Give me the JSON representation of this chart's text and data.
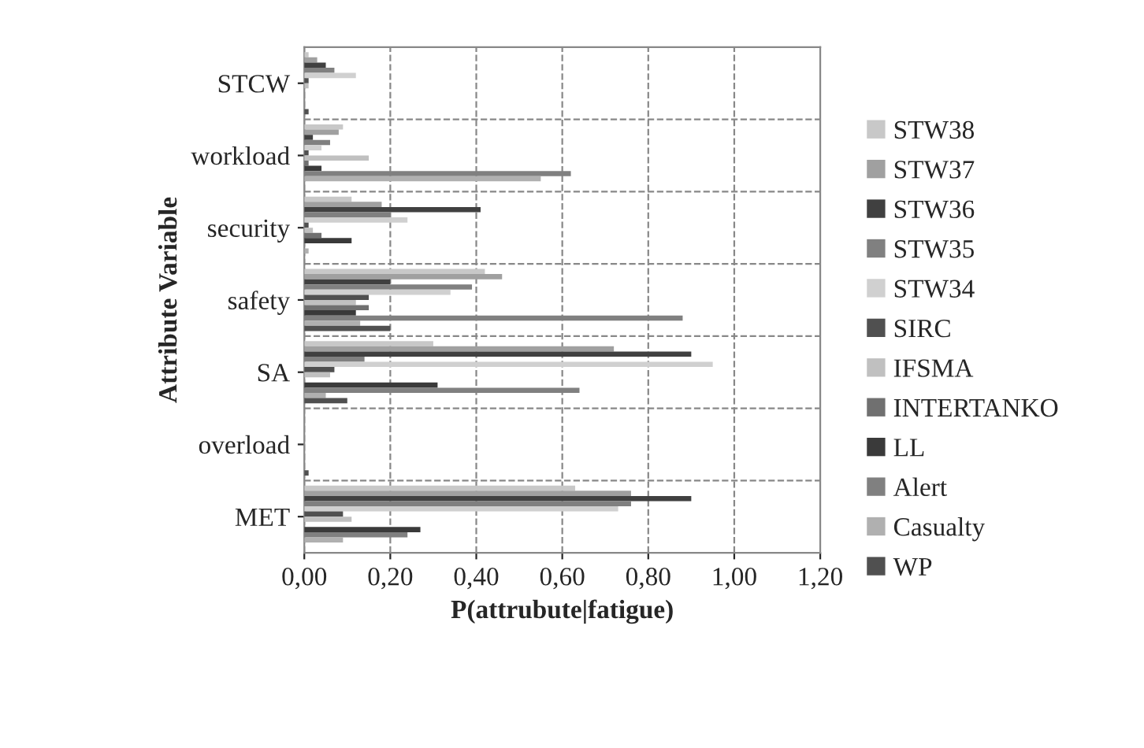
{
  "chart_data": {
    "type": "bar",
    "orientation": "horizontal",
    "xlabel": "P(attrubute|fatigue)",
    "ylabel": "Attribute Variable",
    "categories": [
      "STCW",
      "workload",
      "security",
      "safety",
      "SA",
      "overload",
      "MET"
    ],
    "series": [
      {
        "name": "STW38",
        "color": "#c8c8c8",
        "values": [
          0.01,
          0.09,
          0.11,
          0.42,
          0.3,
          null,
          0.63
        ]
      },
      {
        "name": "STW37",
        "color": "#a0a0a0",
        "values": [
          0.03,
          0.08,
          0.18,
          0.46,
          0.72,
          null,
          0.76
        ]
      },
      {
        "name": "STW36",
        "color": "#404040",
        "values": [
          0.05,
          0.02,
          0.41,
          0.2,
          0.9,
          null,
          0.9
        ]
      },
      {
        "name": "STW35",
        "color": "#808080",
        "values": [
          0.07,
          0.06,
          0.2,
          0.39,
          0.14,
          null,
          0.76
        ]
      },
      {
        "name": "STW34",
        "color": "#d0d0d0",
        "values": [
          0.12,
          0.04,
          0.24,
          0.34,
          0.95,
          null,
          0.73
        ]
      },
      {
        "name": "SIRC",
        "color": "#505050",
        "values": [
          0.01,
          0.01,
          0.01,
          0.15,
          0.07,
          null,
          0.09
        ]
      },
      {
        "name": "IFSMA",
        "color": "#c0c0c0",
        "values": [
          0.01,
          0.15,
          0.02,
          0.12,
          0.06,
          null,
          0.11
        ]
      },
      {
        "name": "INTERTANKO",
        "color": "#707070",
        "values": [
          null,
          0.01,
          0.04,
          0.15,
          null,
          null,
          null
        ]
      },
      {
        "name": "LL",
        "color": "#3a3a3a",
        "values": [
          null,
          0.04,
          0.11,
          0.12,
          0.31,
          null,
          0.27
        ]
      },
      {
        "name": "Alert",
        "color": "#808080",
        "values": [
          null,
          0.62,
          null,
          0.88,
          0.64,
          null,
          0.24
        ]
      },
      {
        "name": "Casualty",
        "color": "#b0b0b0",
        "values": [
          null,
          0.55,
          0.01,
          0.13,
          0.05,
          null,
          0.09
        ]
      },
      {
        "name": "WP",
        "color": "#505050",
        "values": [
          0.01,
          null,
          null,
          0.2,
          0.1,
          0.01,
          null
        ]
      }
    ],
    "xlim": [
      0,
      1.2
    ],
    "xticks": [
      {
        "value": 0,
        "label": "0,00"
      },
      {
        "value": 0.2,
        "label": "0,20"
      },
      {
        "value": 0.4,
        "label": "0,40"
      },
      {
        "value": 0.6,
        "label": "0,60"
      },
      {
        "value": 0.8,
        "label": "0,80"
      },
      {
        "value": 1.0,
        "label": "1,00"
      },
      {
        "value": 1.2,
        "label": "1,20"
      }
    ],
    "grid": true,
    "legend": "right"
  }
}
